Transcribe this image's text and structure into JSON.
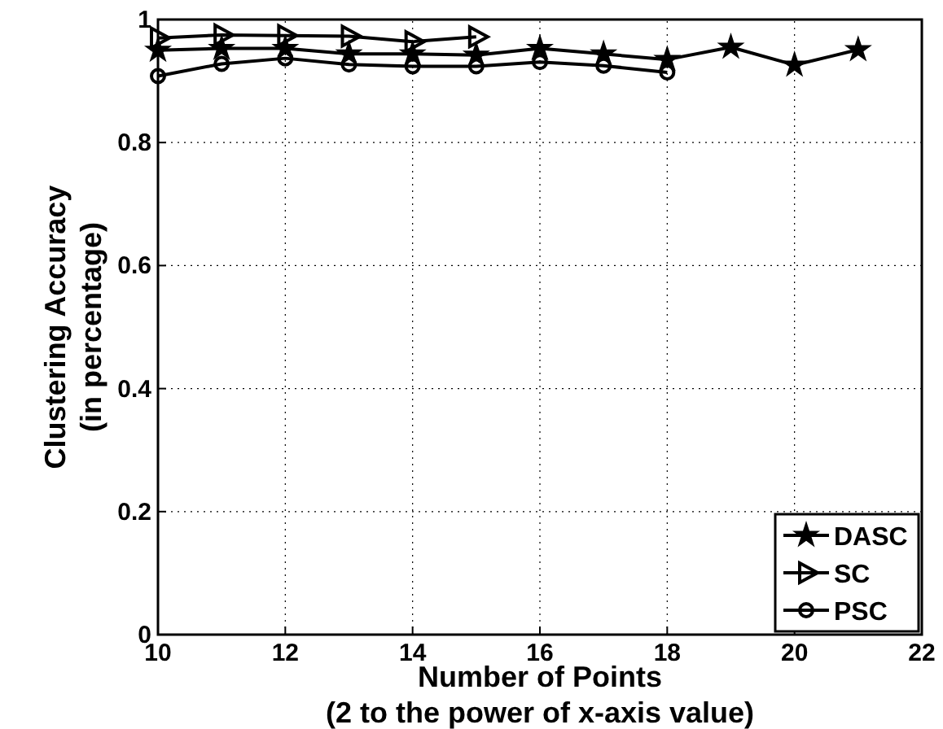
{
  "chart_data": {
    "type": "line",
    "xlabel": "Number of Points\n(2 to the power of x-axis value)",
    "ylabel": "Clustering Accuracy\n(in percentage)",
    "xlim": [
      10,
      22
    ],
    "xticks": [
      10,
      12,
      14,
      16,
      18,
      20,
      22
    ],
    "ylim": [
      0,
      1
    ],
    "yticks": [
      0,
      0.2,
      0.4,
      0.6,
      0.8,
      1
    ],
    "grid": true,
    "legend": "bottom right",
    "series": [
      {
        "name": "DASC",
        "color": "#000000",
        "marker": "star",
        "x": [
          10,
          11,
          12,
          13,
          14,
          15,
          16,
          17,
          18,
          19,
          20,
          21
        ],
        "values": [
          0.95,
          0.953,
          0.953,
          0.944,
          0.944,
          0.942,
          0.953,
          0.944,
          0.935,
          0.955,
          0.926,
          0.951
        ]
      },
      {
        "name": "SC",
        "color": "#000000",
        "marker": "triangle",
        "x": [
          10,
          11,
          12,
          13,
          14,
          15
        ],
        "values": [
          0.97,
          0.975,
          0.974,
          0.973,
          0.964,
          0.972
        ]
      },
      {
        "name": "PSC",
        "color": "#000000",
        "marker": "circle",
        "x": [
          10,
          11,
          12,
          13,
          14,
          15,
          16,
          17,
          18
        ],
        "values": [
          0.908,
          0.928,
          0.937,
          0.927,
          0.924,
          0.924,
          0.931,
          0.925,
          0.914
        ]
      }
    ]
  }
}
